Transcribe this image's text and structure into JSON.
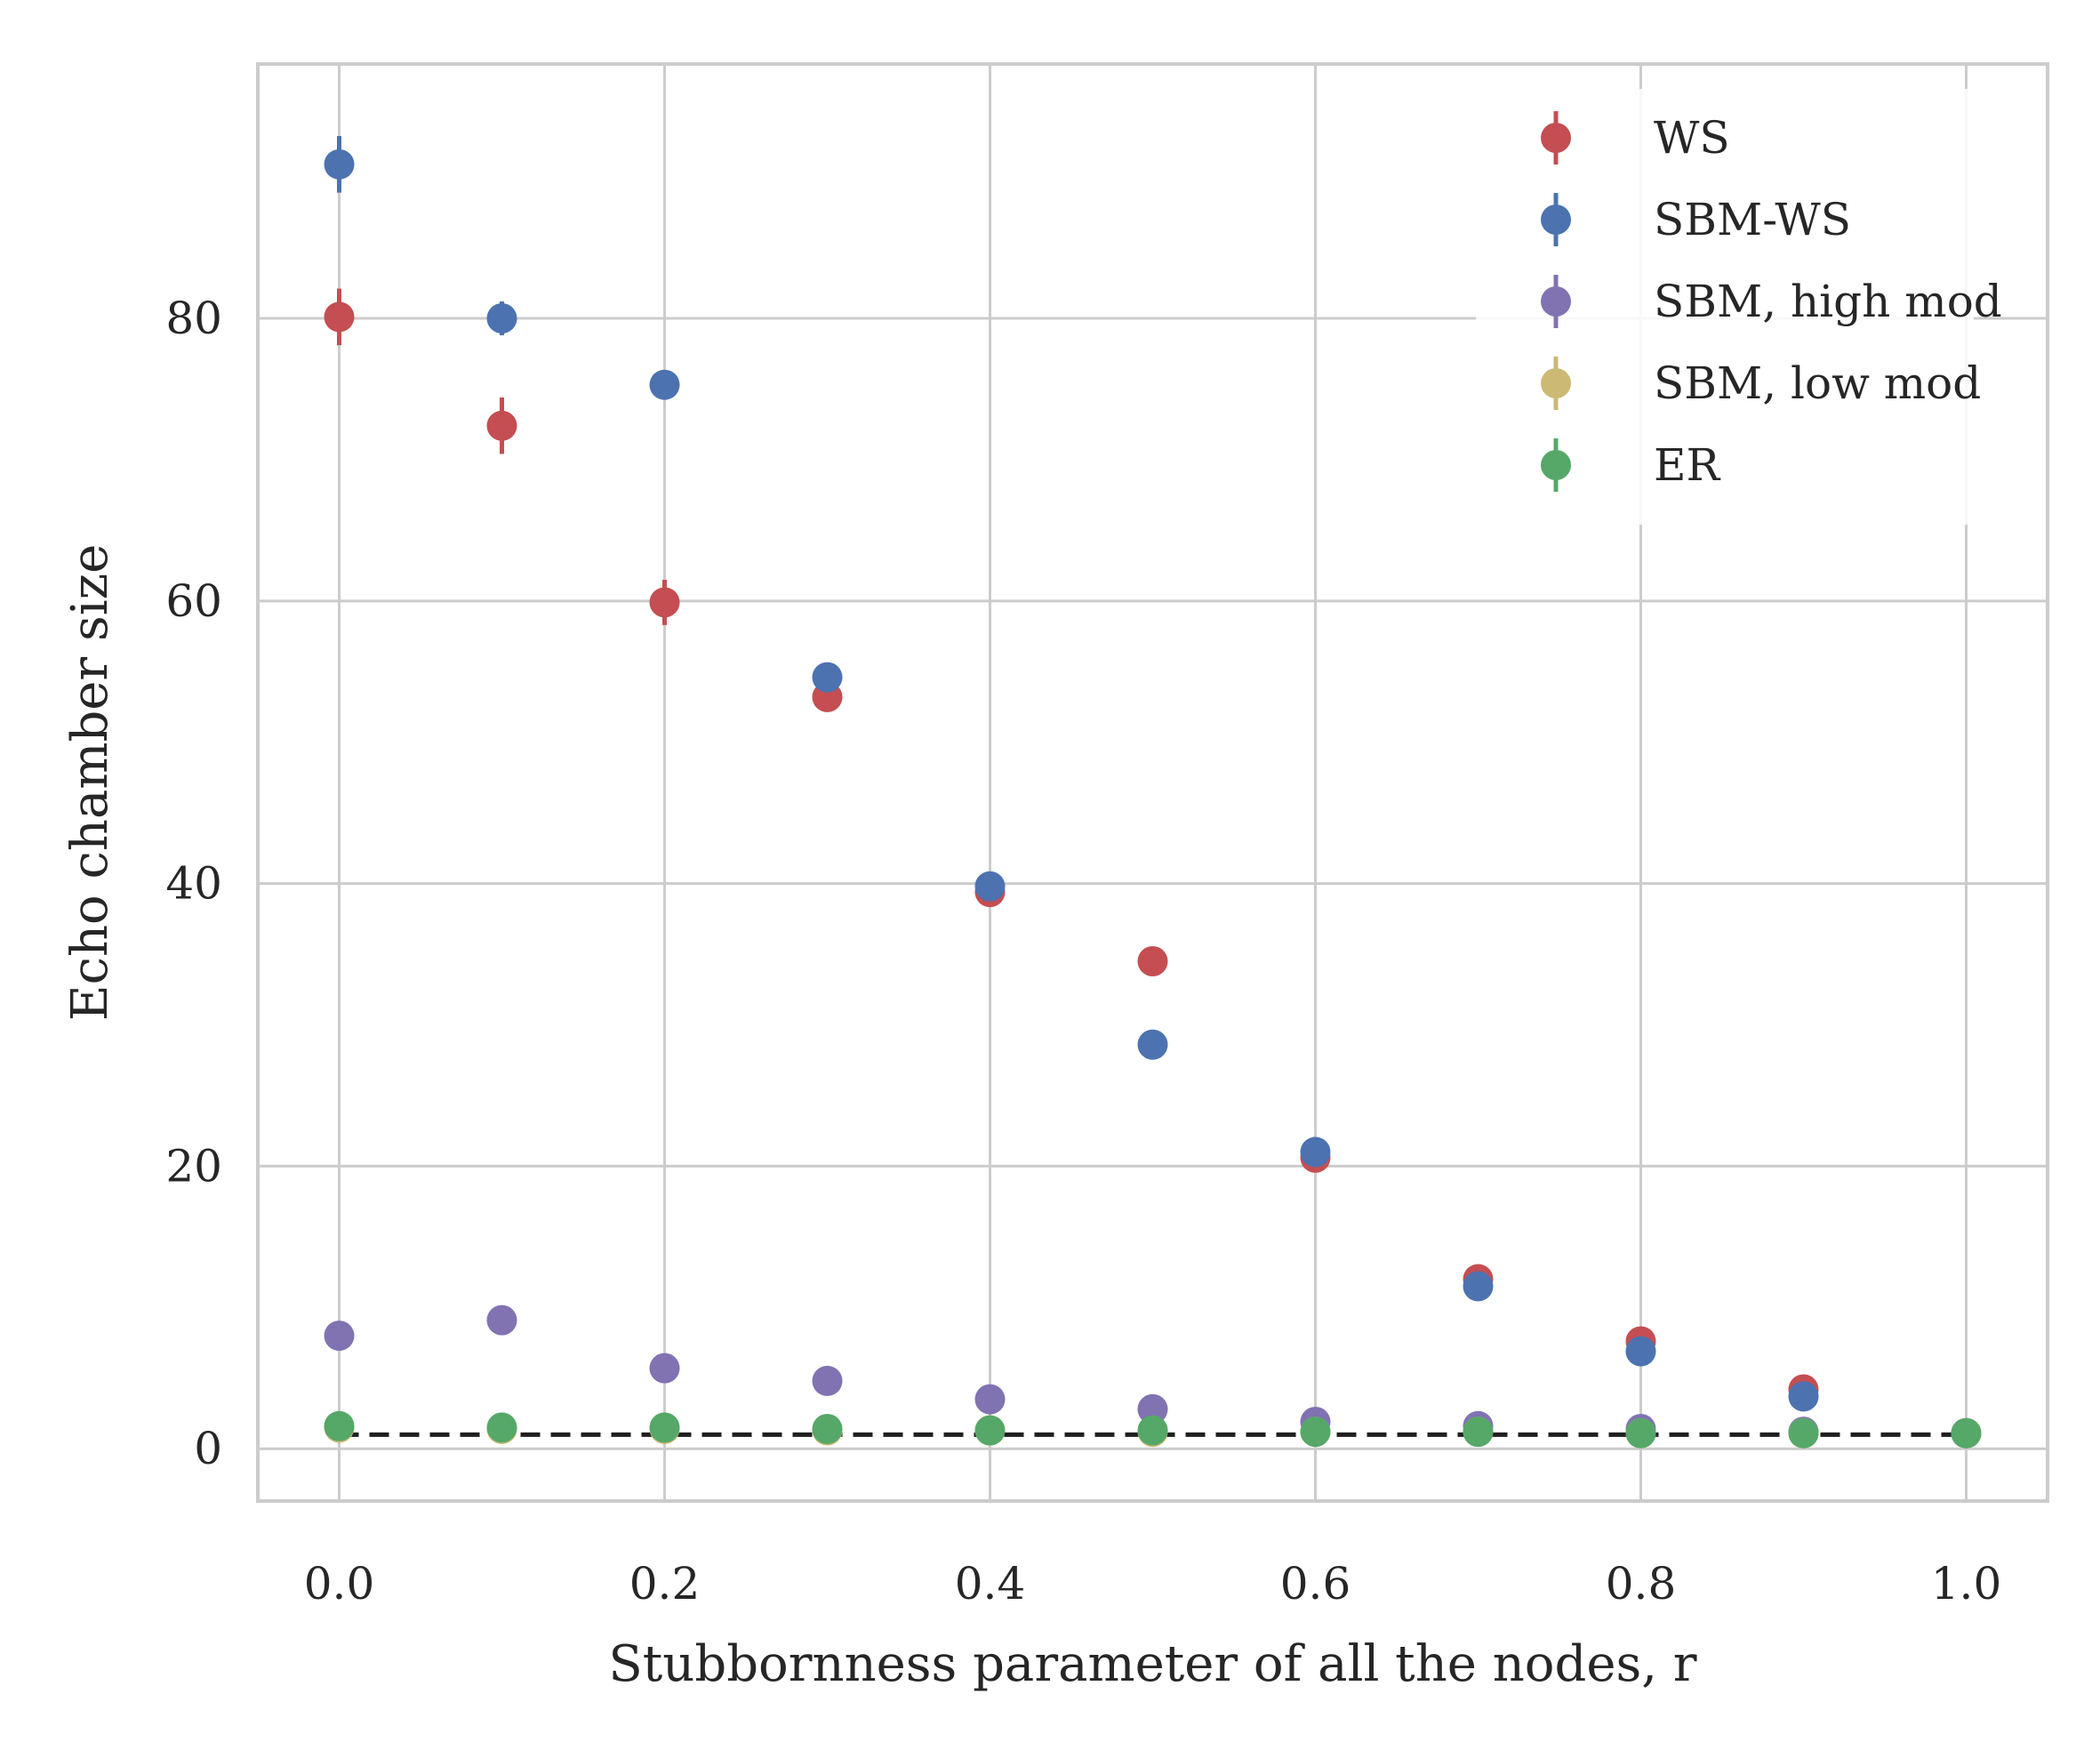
{
  "chart_data": {
    "type": "scatter",
    "title": "",
    "xlabel": "Stubbornness parameter of all the nodes, r",
    "ylabel": "Echo chamber size",
    "xlim": [
      -0.05,
      1.05
    ],
    "ylim": [
      -3.7,
      98.0
    ],
    "xticks": [
      0.0,
      0.2,
      0.4,
      0.6,
      0.8,
      1.0
    ],
    "xtick_labels": [
      "0.0",
      "0.2",
      "0.4",
      "0.6",
      "0.8",
      "1.0"
    ],
    "yticks": [
      0,
      20,
      40,
      60,
      80
    ],
    "ytick_labels": [
      "0",
      "20",
      "40",
      "60",
      "80"
    ],
    "grid": true,
    "legend_position": "top-right",
    "reference_line": {
      "y": 1.0,
      "style": "dashed",
      "color": "#1f1f1f"
    },
    "x": [
      0.0,
      0.1,
      0.2,
      0.3,
      0.4,
      0.5,
      0.6,
      0.7,
      0.8,
      0.9,
      1.0
    ],
    "series": [
      {
        "name": "WS",
        "color": "#c44e52",
        "values": [
          80.1,
          72.4,
          59.9,
          53.2,
          39.4,
          34.5,
          20.6,
          12.0,
          7.6,
          4.2,
          1.1
        ],
        "errors": [
          2.0,
          2.0,
          1.6,
          1.0,
          0.8,
          0.8,
          0.6,
          0.4,
          0.3,
          0.3,
          0.1
        ]
      },
      {
        "name": "SBM-WS",
        "color": "#4c72b0",
        "values": [
          90.9,
          80.0,
          75.3,
          54.6,
          39.8,
          28.6,
          21.0,
          11.5,
          6.9,
          3.7,
          1.1
        ],
        "errors": [
          2.0,
          1.2,
          1.0,
          0.6,
          0.6,
          0.5,
          0.5,
          0.3,
          0.3,
          0.2,
          0.1
        ]
      },
      {
        "name": "SBM, high mod",
        "color": "#8172b2",
        "values": [
          8.0,
          9.1,
          5.7,
          4.8,
          3.5,
          2.8,
          1.9,
          1.6,
          1.4,
          1.2,
          1.1
        ],
        "errors": [
          0.4,
          0.4,
          0.3,
          0.3,
          0.2,
          0.2,
          0.1,
          0.1,
          0.1,
          0.1,
          0.05
        ]
      },
      {
        "name": "SBM, low mod",
        "color": "#ccb974",
        "values": [
          1.5,
          1.4,
          1.4,
          1.3,
          1.3,
          1.2,
          1.2,
          1.2,
          1.1,
          1.1,
          1.1
        ],
        "errors": [
          0.1,
          0.1,
          0.1,
          0.1,
          0.1,
          0.1,
          0.1,
          0.1,
          0.05,
          0.05,
          0.05
        ]
      },
      {
        "name": "ER",
        "color": "#55a868",
        "values": [
          1.6,
          1.5,
          1.5,
          1.4,
          1.3,
          1.3,
          1.2,
          1.2,
          1.1,
          1.1,
          1.1
        ],
        "errors": [
          0.1,
          0.1,
          0.1,
          0.1,
          0.1,
          0.1,
          0.1,
          0.1,
          0.05,
          0.05,
          0.05
        ]
      }
    ]
  }
}
